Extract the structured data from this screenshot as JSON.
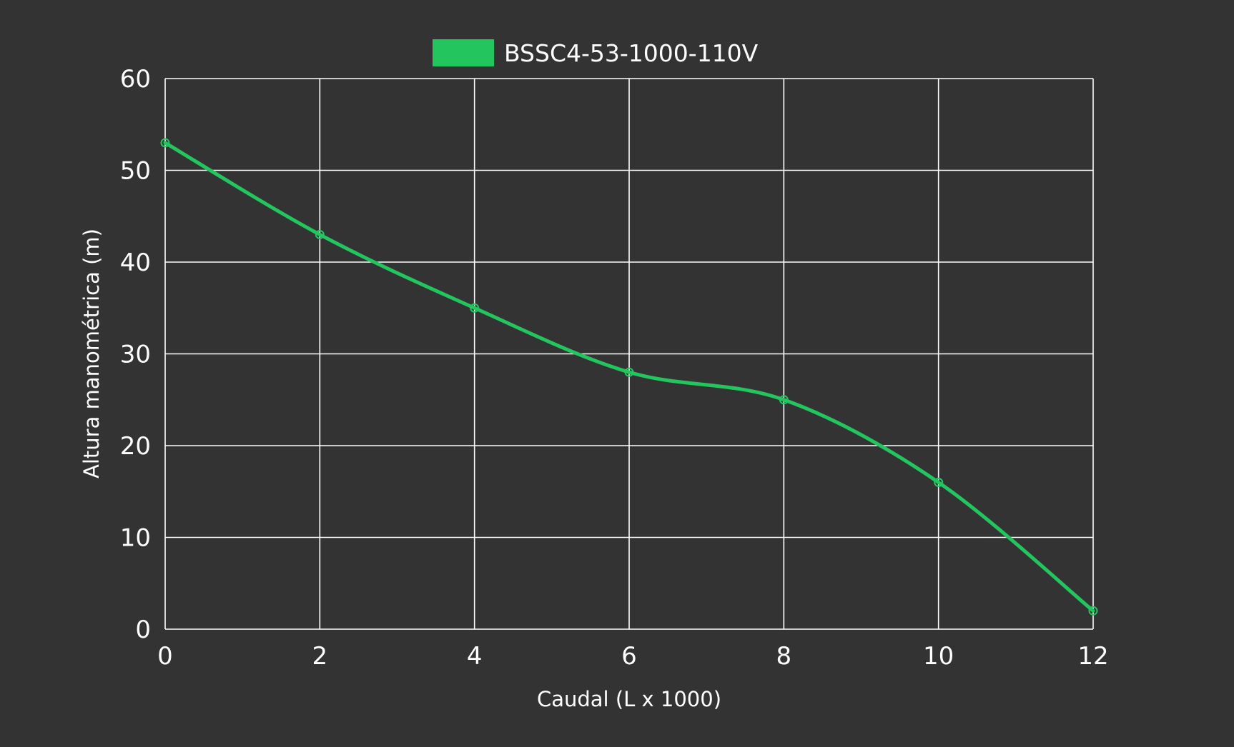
{
  "colors": {
    "background": "#333333",
    "grid": "#ffffff",
    "series": "#22c55e",
    "text": "#ffffff"
  },
  "chart_data": {
    "type": "line",
    "title": "",
    "xlabel": "Caudal (L x 1000)",
    "ylabel": "Altura manométrica (m)",
    "xlim": [
      0,
      12
    ],
    "ylim": [
      0,
      60
    ],
    "x_ticks": [
      0,
      2,
      4,
      6,
      8,
      10,
      12
    ],
    "y_ticks": [
      0,
      10,
      20,
      30,
      40,
      50,
      60
    ],
    "grid": true,
    "legend_position": "top-center",
    "series": [
      {
        "name": "BSSC4-53-1000-110V",
        "x": [
          0,
          2,
          4,
          6,
          8,
          10,
          12
        ],
        "y": [
          53,
          43,
          35,
          28,
          25,
          16,
          2
        ]
      }
    ]
  }
}
